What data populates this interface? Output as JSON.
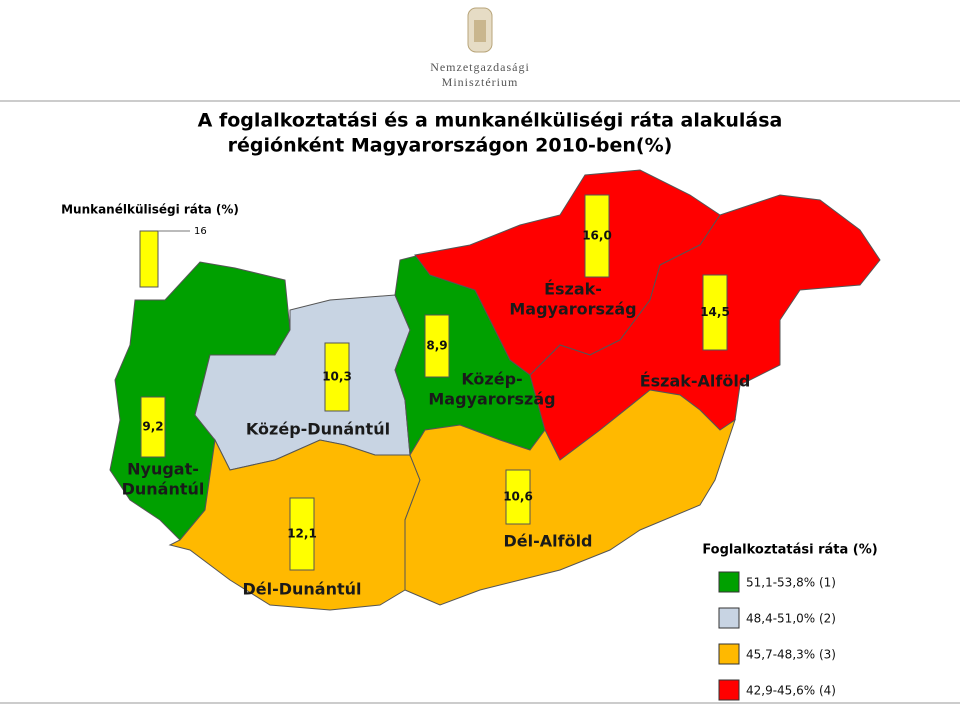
{
  "header": {
    "ministry_line1": "Nemzetgazdasági",
    "ministry_line2": "Minisztérium"
  },
  "title": {
    "line1": "A foglalkoztatási és a munkanélküliségi ráta alakulása",
    "line2": "régiónként Magyarországon 2010-ben(%)"
  },
  "unemployment_legend": {
    "title": "Munkanélküliségi ráta (%)",
    "scale_label": "16"
  },
  "regions": [
    {
      "name_line1": "Nyugat-",
      "name_line2": "Dunántúl",
      "unemployment": "9,2"
    },
    {
      "name_line1": "Közép-Dunántúl",
      "unemployment": "10,3"
    },
    {
      "name_line1": "Dél-Dunántúl",
      "unemployment": "12,1"
    },
    {
      "name_line1": "Közép-",
      "name_line2": "Magyarország",
      "unemployment": "8,9"
    },
    {
      "name_line1": "Észak-",
      "name_line2": "Magyarország",
      "unemployment": "16,0"
    },
    {
      "name_line1": "Észak-Alföld",
      "unemployment": "14,5"
    },
    {
      "name_line1": "Dél-Alföld",
      "unemployment": "10,6"
    }
  ],
  "employment_legend": {
    "title": "Foglalkoztatási ráta (%)",
    "items": [
      {
        "label": "51,1-53,8% (1)",
        "color": "#00a000"
      },
      {
        "label": "48,4-51,0% (2)",
        "color": "#c8d4e3"
      },
      {
        "label": "45,7-48,3% (3)",
        "color": "#ffb900"
      },
      {
        "label": "42,9-45,6% (4)",
        "color": "#ff0000"
      }
    ]
  }
}
